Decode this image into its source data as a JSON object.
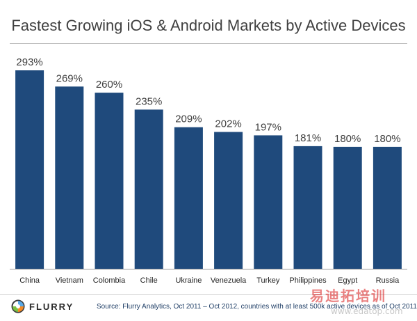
{
  "chart_data": {
    "type": "bar",
    "title": "Fastest Growing iOS & Android Markets by Active Devices",
    "xlabel": "",
    "ylabel": "",
    "ylim": [
      0,
      293
    ],
    "grid": false,
    "categories": [
      "China",
      "Vietnam",
      "Colombia",
      "Chile",
      "Ukraine",
      "Venezuela",
      "Turkey",
      "Philippines",
      "Egypt",
      "Russia"
    ],
    "values": [
      293,
      269,
      260,
      235,
      209,
      202,
      197,
      181,
      180,
      180
    ],
    "value_labels": [
      "293%",
      "269%",
      "260%",
      "235%",
      "209%",
      "202%",
      "197%",
      "181%",
      "180%",
      "180%"
    ],
    "bar_color": "#1f4a7c",
    "label_color": "#404040"
  },
  "footer": {
    "logo_text": "FLURRY",
    "source": "Source: Flurry Analytics, Oct 2011 – Oct 2012, countries with at least 500k active devices as of Oct 2011"
  },
  "watermark": {
    "cn_text": "易迪拓培训",
    "url": "www.edatop.com"
  }
}
